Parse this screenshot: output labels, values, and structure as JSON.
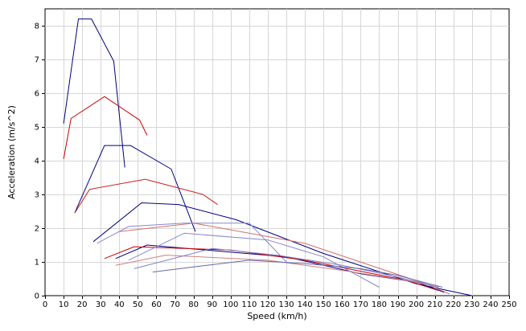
{
  "chart_data": {
    "type": "line",
    "title": "",
    "xlabel": "Speed (km/h)",
    "ylabel": "Acceleration (m/s^2)",
    "xlim": [
      0,
      250
    ],
    "ylim": [
      0,
      8.5
    ],
    "xticks": [
      0,
      10,
      20,
      30,
      40,
      50,
      60,
      70,
      80,
      90,
      100,
      110,
      120,
      130,
      140,
      150,
      160,
      170,
      180,
      190,
      200,
      210,
      220,
      230,
      240,
      250
    ],
    "yticks": [
      0,
      1,
      2,
      3,
      4,
      5,
      6,
      7,
      8
    ],
    "grid": true,
    "series": [
      {
        "color": "#00007a",
        "points": [
          [
            10,
            5.1
          ],
          [
            18,
            8.2
          ],
          [
            25,
            8.2
          ],
          [
            37,
            6.95
          ],
          [
            43,
            3.8
          ]
        ]
      },
      {
        "color": "#cc0000",
        "points": [
          [
            10,
            4.05
          ],
          [
            14,
            5.25
          ],
          [
            32,
            5.9
          ],
          [
            51,
            5.2
          ],
          [
            55,
            4.75
          ]
        ]
      },
      {
        "color": "#000080",
        "points": [
          [
            16,
            2.45
          ],
          [
            32,
            4.45
          ],
          [
            46,
            4.45
          ],
          [
            68,
            3.75
          ],
          [
            81,
            1.9
          ]
        ]
      },
      {
        "color": "#cc2222",
        "points": [
          [
            16,
            2.45
          ],
          [
            24,
            3.15
          ],
          [
            54,
            3.45
          ],
          [
            85,
            3.0
          ],
          [
            93,
            2.7
          ]
        ]
      },
      {
        "color": "#000080",
        "points": [
          [
            26,
            1.6
          ],
          [
            52,
            2.75
          ],
          [
            72,
            2.7
          ],
          [
            103,
            2.25
          ],
          [
            150,
            1.25
          ],
          [
            200,
            0.35
          ],
          [
            230,
            0.0
          ]
        ]
      },
      {
        "color": "#8888cc",
        "points": [
          [
            28,
            1.55
          ],
          [
            45,
            2.05
          ],
          [
            75,
            2.15
          ],
          [
            110,
            2.15
          ],
          [
            130,
            1.0
          ]
        ]
      },
      {
        "color": "#d07070",
        "points": [
          [
            40,
            1.9
          ],
          [
            80,
            2.15
          ],
          [
            140,
            1.55
          ],
          [
            205,
            0.35
          ],
          [
            218,
            0.05
          ]
        ]
      },
      {
        "color": "#000080",
        "points": [
          [
            38,
            1.1
          ],
          [
            55,
            1.5
          ],
          [
            130,
            1.15
          ],
          [
            170,
            0.65
          ],
          [
            200,
            0.4
          ],
          [
            215,
            0.1
          ]
        ]
      },
      {
        "color": "#cc0000",
        "points": [
          [
            32,
            1.1
          ],
          [
            48,
            1.45
          ],
          [
            100,
            1.35
          ],
          [
            140,
            1.05
          ],
          [
            195,
            0.45
          ],
          [
            212,
            0.15
          ]
        ]
      },
      {
        "color": "#8888cc",
        "points": [
          [
            45,
            1.05
          ],
          [
            75,
            1.85
          ],
          [
            120,
            1.65
          ],
          [
            150,
            1.15
          ],
          [
            180,
            0.25
          ]
        ]
      },
      {
        "color": "#d08080",
        "points": [
          [
            38,
            0.9
          ],
          [
            65,
            1.2
          ],
          [
            120,
            1.05
          ],
          [
            160,
            0.75
          ],
          [
            195,
            0.45
          ],
          [
            212,
            0.25
          ]
        ]
      },
      {
        "color": "#8080c8",
        "points": [
          [
            48,
            0.8
          ],
          [
            90,
            1.4
          ],
          [
            125,
            1.2
          ],
          [
            160,
            0.9
          ],
          [
            190,
            0.55
          ],
          [
            212,
            0.25
          ]
        ]
      },
      {
        "color": "#6666aa",
        "points": [
          [
            58,
            0.7
          ],
          [
            80,
            0.85
          ],
          [
            110,
            1.05
          ],
          [
            140,
            0.95
          ],
          [
            170,
            0.8
          ],
          [
            190,
            0.6
          ],
          [
            214,
            0.25
          ]
        ]
      }
    ]
  }
}
